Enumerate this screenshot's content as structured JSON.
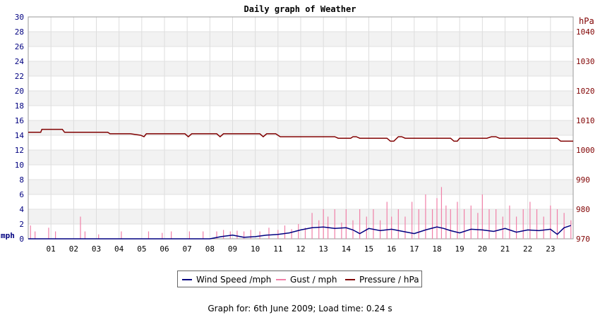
{
  "chart_data": {
    "type": "line",
    "title": "Daily graph of Weather",
    "left_axis": {
      "unit_label": "mph",
      "ylim": [
        0,
        30
      ],
      "ticks": [
        0,
        2,
        4,
        6,
        8,
        10,
        12,
        14,
        16,
        18,
        20,
        22,
        24,
        26,
        28,
        30
      ]
    },
    "right_axis": {
      "unit_label": "hPa",
      "ylim": [
        970,
        1045
      ],
      "ticks": [
        970,
        980,
        990,
        1000,
        1010,
        1020,
        1030,
        1040
      ]
    },
    "x_axis": {
      "range_hours": [
        0,
        24
      ],
      "tick_labels": [
        "01",
        "02",
        "03",
        "04",
        "05",
        "06",
        "07",
        "08",
        "09",
        "10",
        "11",
        "12",
        "13",
        "14",
        "15",
        "16",
        "17",
        "18",
        "19",
        "20",
        "21",
        "22",
        "23"
      ]
    },
    "grid": true,
    "legend_position": "bottom-center",
    "series": [
      {
        "name": "Wind Speed /mph",
        "color": "#000080",
        "axis": "left",
        "x": [
          0,
          1,
          2,
          3,
          4,
          5,
          6,
          7,
          8,
          8.5,
          9,
          9.5,
          10,
          10.5,
          11,
          11.5,
          12,
          12.5,
          13,
          13.5,
          14,
          14.3,
          14.6,
          15,
          15.5,
          16,
          16.5,
          17,
          17.5,
          18,
          18.3,
          18.6,
          19,
          19.5,
          20,
          20.5,
          21,
          21.5,
          22,
          22.5,
          23,
          23.3,
          23.6,
          23.9
        ],
        "y": [
          0,
          0,
          0,
          0,
          0,
          0,
          0,
          0,
          0,
          0.3,
          0.5,
          0.2,
          0.3,
          0.5,
          0.6,
          0.8,
          1.2,
          1.5,
          1.6,
          1.4,
          1.5,
          1.2,
          0.7,
          1.4,
          1.1,
          1.3,
          1.0,
          0.7,
          1.2,
          1.6,
          1.4,
          1.1,
          0.8,
          1.3,
          1.2,
          1.0,
          1.4,
          0.9,
          1.2,
          1.1,
          1.3,
          0.6,
          1.5,
          1.8
        ]
      },
      {
        "name": "Gust / mph",
        "color": "#f080a8",
        "axis": "left",
        "x": [
          0.1,
          0.3,
          0.9,
          1.2,
          2.3,
          2.5,
          3.1,
          4.1,
          5.3,
          5.9,
          6.3,
          7.1,
          7.7,
          8.3,
          8.6,
          8.9,
          9.2,
          9.5,
          9.8,
          10.2,
          10.6,
          11.0,
          11.3,
          11.6,
          11.9,
          12.2,
          12.5,
          12.8,
          13.0,
          13.2,
          13.5,
          13.8,
          14.0,
          14.3,
          14.6,
          14.9,
          15.2,
          15.5,
          15.8,
          16.0,
          16.3,
          16.6,
          16.9,
          17.2,
          17.5,
          17.8,
          18.0,
          18.2,
          18.4,
          18.6,
          18.9,
          19.2,
          19.5,
          19.8,
          20.0,
          20.3,
          20.6,
          20.9,
          21.2,
          21.5,
          21.8,
          22.1,
          22.4,
          22.7,
          23.0,
          23.3,
          23.6,
          23.9
        ],
        "y": [
          1.8,
          1.0,
          1.5,
          1.0,
          3.0,
          1.0,
          0.6,
          1.0,
          1.0,
          0.8,
          1.0,
          1.0,
          1.0,
          1.0,
          1.2,
          1.0,
          1.1,
          1.0,
          1.2,
          1.0,
          1.5,
          1.2,
          1.8,
          1.3,
          2.0,
          1.5,
          3.5,
          2.5,
          4.0,
          3.0,
          4.0,
          2.2,
          4.0,
          2.5,
          4.0,
          3.0,
          4.0,
          2.5,
          5.0,
          3.0,
          4.0,
          3.0,
          5.0,
          4.0,
          6.0,
          4.0,
          5.5,
          7.0,
          4.5,
          4.0,
          5.0,
          4.0,
          4.5,
          3.5,
          6.0,
          4.0,
          4.0,
          3.0,
          4.5,
          3.0,
          4.0,
          5.0,
          4.0,
          3.0,
          4.5,
          4.0,
          3.5,
          2.5
        ]
      },
      {
        "name": "Pressure / hPa",
        "color": "#800000",
        "axis": "right",
        "x": [
          0,
          0.55,
          0.6,
          0.7,
          1.5,
          1.6,
          1.75,
          3.5,
          3.6,
          4.5,
          4.95,
          5.1,
          5.2,
          6.9,
          7.05,
          7.2,
          8.3,
          8.45,
          8.6,
          10.2,
          10.35,
          10.5,
          10.9,
          11.0,
          11.1,
          13.5,
          13.65,
          14.2,
          14.3,
          14.45,
          14.6,
          15.8,
          15.95,
          16.1,
          16.3,
          16.45,
          16.6,
          18.6,
          18.75,
          18.9,
          19.0,
          20.2,
          20.4,
          20.6,
          20.75,
          23.3,
          23.45,
          24.0
        ],
        "y": [
          1006,
          1006,
          1007,
          1007,
          1007,
          1006,
          1006,
          1006,
          1005.5,
          1005.5,
          1005,
          1004.5,
          1005.5,
          1005.5,
          1004.5,
          1005.5,
          1005.5,
          1004.5,
          1005.5,
          1005.5,
          1004.5,
          1005.5,
          1005.5,
          1005,
          1004.5,
          1004.5,
          1004,
          1004,
          1004.5,
          1004.5,
          1004,
          1004,
          1003,
          1003,
          1004.5,
          1004.5,
          1004,
          1004,
          1003,
          1003,
          1004,
          1004,
          1004.5,
          1004.5,
          1004,
          1004,
          1003,
          1003
        ]
      }
    ]
  },
  "legend": [
    {
      "label": "Wind Speed /mph",
      "color": "#000080"
    },
    {
      "label": "Gust / mph",
      "color": "#f080a8"
    },
    {
      "label": "Pressure / hPa",
      "color": "#800000"
    }
  ],
  "footer": "Graph for: 6th June 2009; Load time: 0.24 s"
}
